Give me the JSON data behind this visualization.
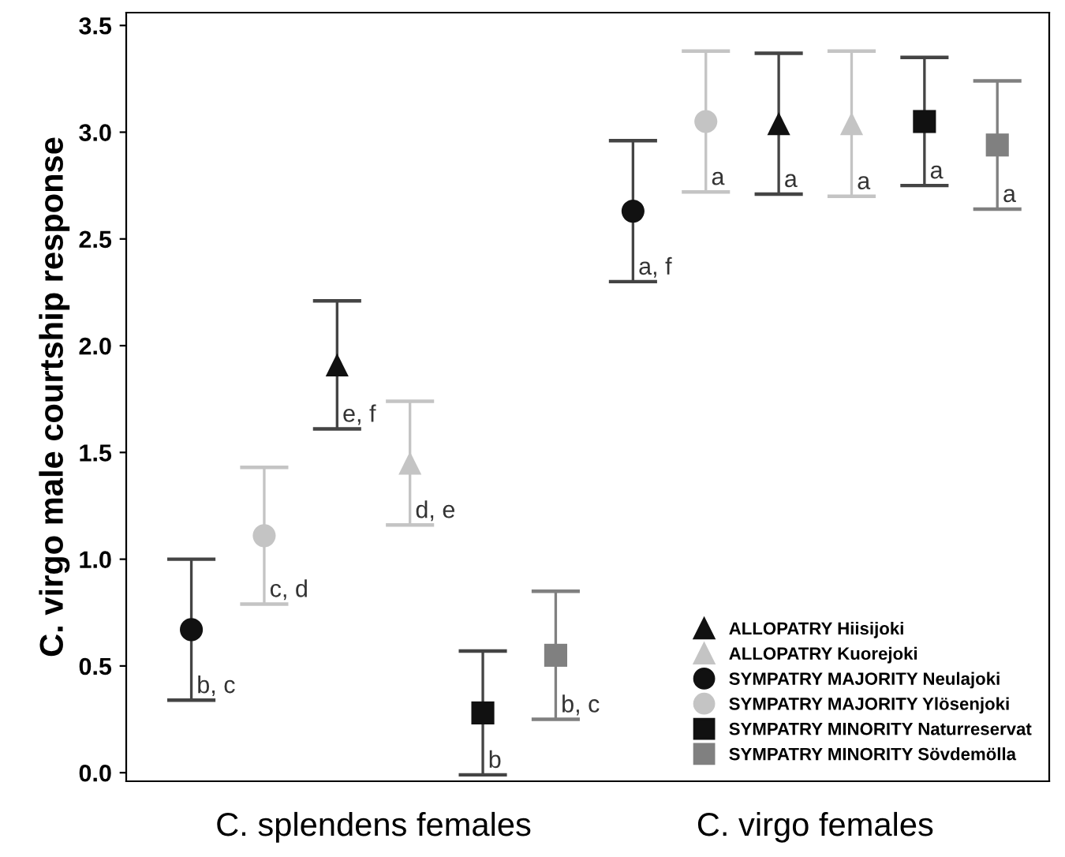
{
  "chart_data": {
    "type": "scatter",
    "categories": [
      "C. splendens females",
      "C. virgo females"
    ],
    "ylabel": "C. virgo male courtship response",
    "ylim": [
      -0.04,
      3.56
    ],
    "yticks": [
      {
        "value": 0,
        "label": "0.0"
      },
      {
        "value": 0.5,
        "label": "0.5"
      },
      {
        "value": 1,
        "label": "1.0"
      },
      {
        "value": 1.5,
        "label": "1.5"
      },
      {
        "value": 2,
        "label": "2.0"
      },
      {
        "value": 2.5,
        "label": "2.5"
      },
      {
        "value": 3,
        "label": "3.0"
      },
      {
        "value": 3.5,
        "label": "3.5"
      }
    ],
    "grid": false,
    "legend": "lower right",
    "series": [
      {
        "name": "ALLOPATRY Hiisijoki",
        "color": "#111111",
        "marker": "triangle",
        "values": [
          1.91,
          3.04
        ],
        "errors": [
          0.3,
          0.33
        ],
        "value_labels": [
          "e, f",
          "a"
        ]
      },
      {
        "name": "ALLOPATRY Kuorejoki",
        "color": "#c4c4c4",
        "marker": "triangle",
        "values": [
          1.45,
          3.04
        ],
        "errors": [
          0.29,
          0.34
        ],
        "value_labels": [
          "d, e",
          "a"
        ]
      },
      {
        "name": "SYMPATRY MAJORITY Neulajoki",
        "color": "#111111",
        "marker": "circle",
        "values": [
          0.67,
          2.63
        ],
        "errors": [
          0.33,
          0.33
        ],
        "value_labels": [
          "b, c",
          "a, f"
        ]
      },
      {
        "name": "SYMPATRY MAJORITY Ylösenjoki",
        "color": "#c4c4c4",
        "marker": "circle",
        "values": [
          1.11,
          3.05
        ],
        "errors": [
          0.32,
          0.33
        ],
        "value_labels": [
          "c, d",
          "a"
        ]
      },
      {
        "name": "SYMPATRY MINORITY Naturreservat",
        "color": "#111111",
        "marker": "square",
        "values": [
          0.28,
          3.05
        ],
        "errors": [
          0.29,
          0.3
        ],
        "value_labels": [
          "b",
          "a"
        ]
      },
      {
        "name": "SYMPATRY MINORITY Sövdemölla",
        "color": "#808080",
        "marker": "square",
        "values": [
          0.55,
          2.94
        ],
        "errors": [
          0.3,
          0.3
        ],
        "value_labels": [
          "b, c",
          "a"
        ]
      }
    ]
  }
}
